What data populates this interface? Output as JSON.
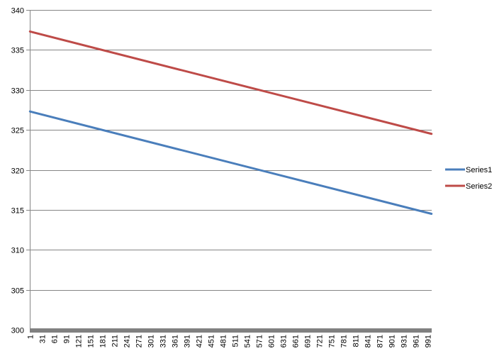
{
  "chart_data": {
    "type": "line",
    "title": "",
    "xlabel": "",
    "ylabel": "",
    "x": {
      "start": 1,
      "end": 1000,
      "step": 1
    },
    "x_tick_labels": [
      "1",
      "31",
      "61",
      "91",
      "121",
      "151",
      "181",
      "211",
      "241",
      "271",
      "301",
      "331",
      "361",
      "391",
      "421",
      "451",
      "481",
      "511",
      "541",
      "571",
      "601",
      "631",
      "661",
      "691",
      "721",
      "751",
      "781",
      "811",
      "841",
      "871",
      "901",
      "931",
      "961",
      "991"
    ],
    "ylim": [
      300,
      340
    ],
    "y_ticks": [
      300,
      305,
      310,
      315,
      320,
      325,
      330,
      335,
      340
    ],
    "grid": "horizontal",
    "legend_position": "right",
    "series": [
      {
        "name": "Series1",
        "color": "#4a7ebb",
        "start": [
          1,
          327.3
        ],
        "end": [
          1000,
          314.5
        ]
      },
      {
        "name": "Series2",
        "color": "#be4b48",
        "start": [
          1,
          337.3
        ],
        "end": [
          1000,
          324.5
        ]
      }
    ],
    "colors": {
      "grid": "#868686",
      "axis": "#868686",
      "axis_floor": "#808080"
    }
  }
}
